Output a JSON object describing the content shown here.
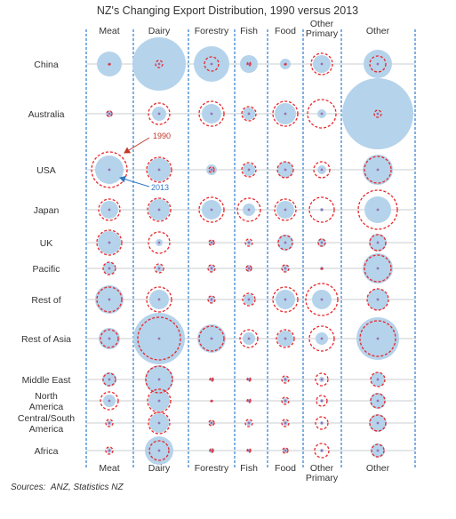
{
  "chart_data": {
    "type": "bubble-grid",
    "title": "NZ's Changing Export Distribution, 1990 versus 2013",
    "columns": [
      [
        "Meat"
      ],
      [
        "Dairy"
      ],
      [
        "Forestry"
      ],
      [
        "Fish"
      ],
      [
        "Food"
      ],
      [
        "Other",
        "Primary"
      ],
      [
        "Other"
      ]
    ],
    "rows": [
      [
        "China"
      ],
      [
        "Australia"
      ],
      [
        "USA"
      ],
      [
        "Japan"
      ],
      [
        "UK"
      ],
      [
        "Pacific"
      ],
      [
        "Rest of"
      ],
      [
        "Rest of Asia"
      ],
      [
        "Middle East"
      ],
      [
        "North",
        "America"
      ],
      [
        "Central/South",
        "America"
      ],
      [
        "Africa"
      ]
    ],
    "series": [
      {
        "name": "1990",
        "style": "dashed-red-circle",
        "values": [
          [
            1,
            4,
            8,
            2,
            1,
            12,
            9
          ],
          [
            3,
            12,
            14,
            8,
            14,
            16,
            4
          ],
          [
            20,
            14,
            3,
            8,
            9,
            9,
            15
          ],
          [
            12,
            13,
            14,
            13,
            12,
            14,
            22
          ],
          [
            14,
            12,
            3,
            4,
            8,
            4,
            9
          ],
          [
            7,
            5,
            4,
            3,
            4,
            1,
            15
          ],
          [
            14,
            14,
            4,
            7,
            14,
            18,
            12
          ],
          [
            10,
            24,
            14,
            10,
            10,
            14,
            20
          ],
          [
            7,
            15,
            2,
            2,
            4,
            7,
            8
          ],
          [
            10,
            13,
            1,
            2,
            4,
            6,
            8
          ],
          [
            4,
            12,
            3,
            4,
            4,
            7,
            9
          ],
          [
            4,
            11,
            2,
            2,
            3,
            8,
            7
          ]
        ]
      },
      {
        "name": "2013",
        "style": "filled-blue-circle",
        "values": [
          [
            14,
            30,
            20,
            10,
            6,
            10,
            16
          ],
          [
            4,
            8,
            11,
            7,
            12,
            5,
            40
          ],
          [
            16,
            13,
            6,
            7,
            9,
            5,
            17
          ],
          [
            10,
            12,
            11,
            7,
            10,
            2,
            15
          ],
          [
            13,
            4,
            3,
            3,
            9,
            5,
            10
          ],
          [
            7,
            4,
            4,
            4,
            4,
            2,
            17
          ],
          [
            16,
            11,
            4,
            6,
            11,
            11,
            12
          ],
          [
            12,
            29,
            16,
            7,
            9,
            7,
            24
          ],
          [
            8,
            16,
            2,
            2,
            3,
            3,
            8
          ],
          [
            7,
            12,
            1,
            2,
            3,
            2,
            9
          ],
          [
            3,
            11,
            3,
            3,
            3,
            2,
            10
          ],
          [
            3,
            16,
            3,
            2,
            3,
            2,
            8
          ]
        ]
      }
    ],
    "annotations": [
      {
        "text": "1990",
        "points_to": "USA-Meat-1990"
      },
      {
        "text": "2013",
        "points_to": "USA-Meat-2013"
      }
    ],
    "grid": true
  },
  "source_label": "Sources:",
  "source_text": "ANZ, Statistics NZ",
  "colors": {
    "fill_2013": "#b5d3eb",
    "ring_1990": "#e8262a",
    "divider": "#4a8fd6",
    "gridline": "#c8ccd2",
    "ann_1990": "#c0392b",
    "ann_2013": "#2f79c7"
  }
}
